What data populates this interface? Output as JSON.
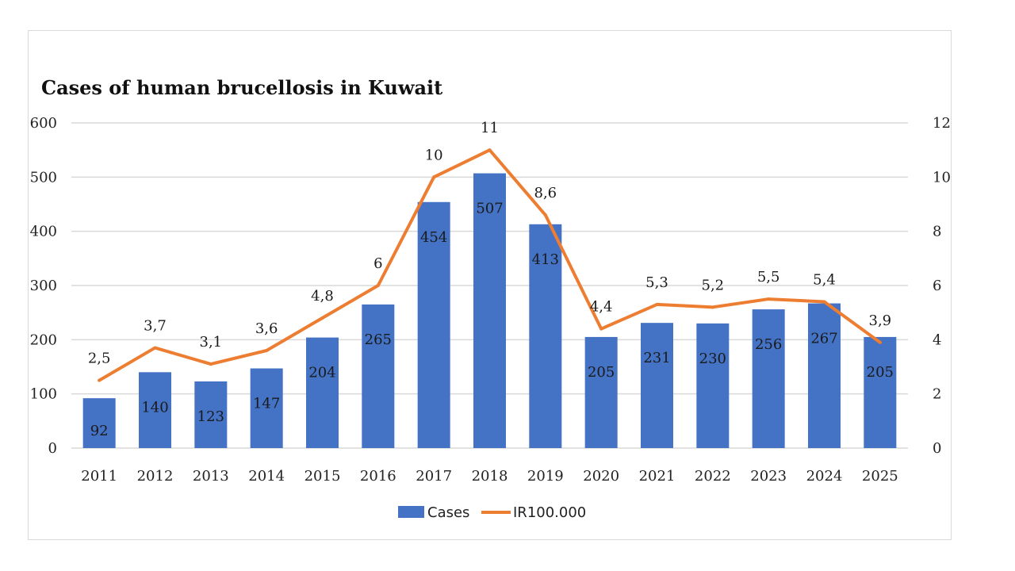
{
  "chart_data": {
    "type": "bar",
    "title": "Cases of human brucellosis in Kuwait",
    "categories": [
      "2011",
      "2012",
      "2013",
      "2014",
      "2015",
      "2016",
      "2017",
      "2018",
      "2019",
      "2020",
      "2021",
      "2022",
      "2023",
      "2024",
      "2025"
    ],
    "series": [
      {
        "name": "Cases",
        "type": "bar",
        "axis": "left",
        "color": "#4472c4",
        "values": [
          92,
          140,
          123,
          147,
          204,
          265,
          454,
          507,
          413,
          205,
          231,
          230,
          256,
          267,
          205
        ],
        "labels": [
          "92",
          "140",
          "123",
          "147",
          "204",
          "265",
          "454",
          "507",
          "413",
          "205",
          "231",
          "230",
          "256",
          "267",
          "205"
        ]
      },
      {
        "name": "IR100.000",
        "type": "line",
        "axis": "right",
        "color": "#ed7d31",
        "values": [
          2.5,
          3.7,
          3.1,
          3.6,
          4.8,
          6,
          10,
          11,
          8.6,
          4.4,
          5.3,
          5.2,
          5.5,
          5.4,
          3.9
        ],
        "labels": [
          "2,5",
          "3,7",
          "3,1",
          "3,6",
          "4,8",
          "6",
          "10",
          "11",
          "8,6",
          "4,4",
          "5,3",
          "5,2",
          "5,5",
          "5,4",
          "3,9"
        ]
      }
    ],
    "y_left": {
      "min": 0,
      "max": 600,
      "ticks": [
        "0",
        "100",
        "200",
        "300",
        "400",
        "500",
        "600"
      ]
    },
    "y_right": {
      "min": 0,
      "max": 12,
      "ticks": [
        "0",
        "2",
        "4",
        "6",
        "8",
        "10",
        "12"
      ]
    },
    "grid": true,
    "legend_position": "bottom"
  }
}
